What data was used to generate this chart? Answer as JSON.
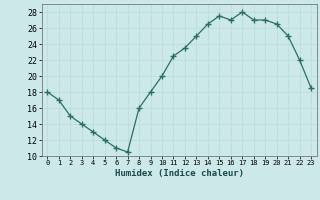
{
  "x": [
    0,
    1,
    2,
    3,
    4,
    5,
    6,
    7,
    8,
    9,
    10,
    11,
    12,
    13,
    14,
    15,
    16,
    17,
    18,
    19,
    20,
    21,
    22,
    23
  ],
  "y": [
    18,
    17,
    15,
    14,
    13,
    12,
    11,
    10.5,
    16,
    18,
    20,
    22.5,
    23.5,
    25,
    26.5,
    27.5,
    27,
    28,
    27,
    27,
    26.5,
    25,
    22,
    18.5
  ],
  "line_color": "#2a7060",
  "marker": "+",
  "bg_color": "#cce8e8",
  "grid_major_color": "#bbdddd",
  "grid_minor_color": "#ccdddd",
  "xlabel": "Humidex (Indice chaleur)",
  "ylim": [
    10,
    29
  ],
  "xlim": [
    -0.5,
    23.5
  ],
  "yticks": [
    10,
    12,
    14,
    16,
    18,
    20,
    22,
    24,
    26,
    28
  ],
  "xticks": [
    0,
    1,
    2,
    3,
    4,
    5,
    6,
    7,
    8,
    9,
    10,
    11,
    12,
    13,
    14,
    15,
    16,
    17,
    18,
    19,
    20,
    21,
    22,
    23
  ]
}
